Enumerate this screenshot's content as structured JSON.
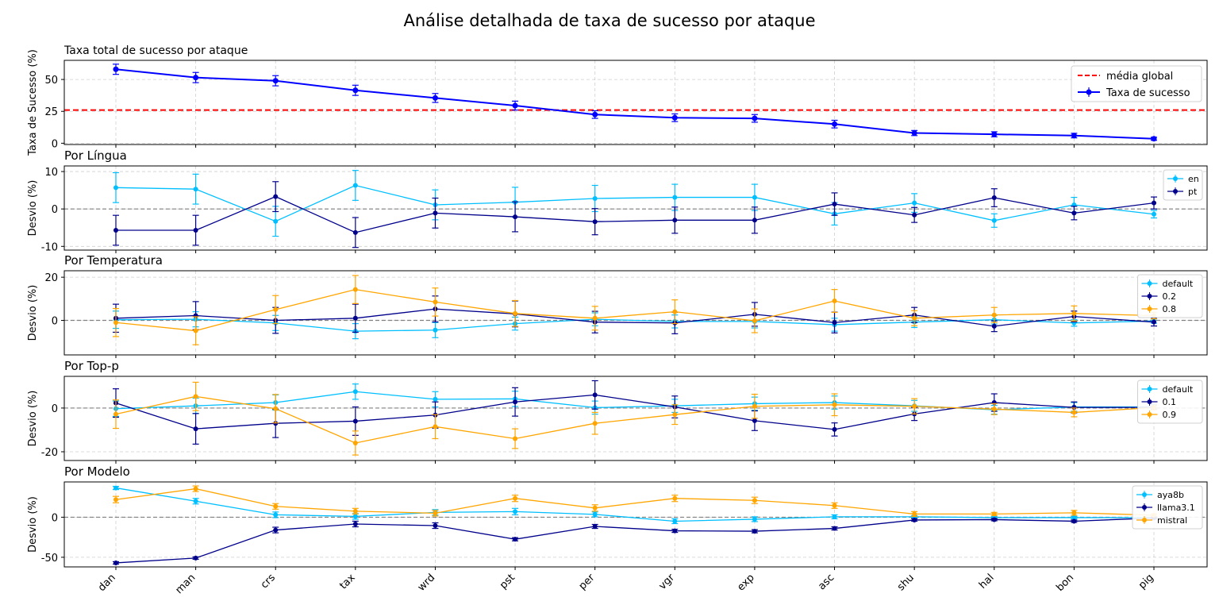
{
  "chart_data": {
    "type": "line",
    "title": "Análise detalhada de taxa de sucesso por ataque",
    "categories": [
      "dan",
      "man",
      "crs",
      "tax",
      "wrd",
      "pst",
      "per",
      "vgr",
      "exp",
      "asc",
      "shu",
      "hal",
      "bon",
      "pig"
    ],
    "panels": [
      {
        "title": "Taxa total de sucesso por ataque",
        "ylabel": "Taxa de Sucesso (%)",
        "ylim": [
          -1,
          65
        ],
        "yticks": [
          0,
          25,
          50
        ],
        "hline": {
          "value": 26,
          "label": "média global",
          "color": "#ff0000"
        },
        "legend_position": "upper right",
        "series": [
          {
            "name": "Taxa de sucesso",
            "color": "#0000ff",
            "values": [
              58,
              51.5,
              49,
              41.5,
              35.5,
              29.5,
              22.5,
              20,
              19.5,
              15,
              8,
              7,
              6,
              3.5
            ],
            "errors": [
              4,
              4,
              4,
              4,
              3.5,
              3.5,
              3,
              3,
              3,
              3,
              2,
              2,
              1.8,
              1.2
            ]
          }
        ]
      },
      {
        "title": "Por Língua",
        "ylabel": "Desvio (%)",
        "ylim": [
          -11,
          11.5
        ],
        "yticks": [
          -10,
          0,
          10
        ],
        "legend_position": "upper right",
        "series": [
          {
            "name": "en",
            "color": "#00bfff",
            "values": [
              5.7,
              5.3,
              -3.3,
              6.3,
              1.1,
              1.8,
              2.8,
              3.1,
              3.1,
              -1.3,
              1.6,
              -3.1,
              1.1,
              -1.4
            ],
            "errors": [
              4,
              4,
              4,
              4,
              4,
              4,
              3.5,
              3.5,
              3.5,
              3,
              2.5,
              1.8,
              2,
              1
            ]
          },
          {
            "name": "pt",
            "color": "#00008b",
            "values": [
              -5.7,
              -5.7,
              3.3,
              -6.3,
              -1.1,
              -2.1,
              -3.4,
              -3.0,
              -3.0,
              1.3,
              -1.6,
              3.0,
              -1.1,
              1.6
            ],
            "errors": [
              4,
              4,
              4,
              4,
              4,
              4,
              3.5,
              3.5,
              3.5,
              3,
              2,
              2.4,
              1.8,
              1.6
            ]
          }
        ]
      },
      {
        "title": "Por Temperatura",
        "ylabel": "Desvio (%)",
        "ylim": [
          -16,
          23
        ],
        "yticks": [
          0,
          20
        ],
        "legend_position": "upper right",
        "series": [
          {
            "name": "default",
            "color": "#00bfff",
            "values": [
              0.3,
              0.5,
              -1.2,
              -5.0,
              -4.5,
              -1.5,
              0.5,
              -0.5,
              -0.5,
              -2.0,
              -0.8,
              0.3,
              -1.2,
              -0.3
            ],
            "errors": [
              4,
              3.5,
              3.5,
              3.5,
              3.5,
              3,
              3,
              3,
              3,
              3,
              2.5,
              2,
              1.5,
              1
            ]
          },
          {
            "name": "0.2",
            "color": "#00008b",
            "values": [
              1.0,
              2.2,
              0.0,
              1.0,
              5.3,
              3.0,
              -0.8,
              -1.2,
              2.8,
              -1.0,
              2.5,
              -2.7,
              1.8,
              -0.8
            ],
            "errors": [
              6.5,
              6.5,
              6,
              6.5,
              6,
              6,
              5,
              5,
              5.5,
              4.8,
              3.5,
              2.5,
              2.5,
              1.8
            ]
          },
          {
            "name": "0.8",
            "color": "#ffa500",
            "values": [
              -1.0,
              -4.8,
              5.0,
              14.3,
              8.5,
              3.2,
              1.0,
              4.0,
              -0.2,
              9.0,
              1.0,
              2.5,
              3.2,
              2.2
            ],
            "errors": [
              6.5,
              6.5,
              6.5,
              6.5,
              6.5,
              6,
              5.5,
              5.5,
              5.5,
              5.3,
              3.5,
              3.5,
              3.5,
              1.5
            ]
          }
        ]
      },
      {
        "title": "Por Top-p",
        "ylabel": "Desvio (%)",
        "ylim": [
          -24,
          14.5
        ],
        "yticks": [
          -20,
          0
        ],
        "legend_position": "upper right",
        "series": [
          {
            "name": "default",
            "color": "#00bfff",
            "values": [
              -0.3,
              1.0,
              2.5,
              7.5,
              4.0,
              4.2,
              0.2,
              1.0,
              2.0,
              2.5,
              1.0,
              -0.8,
              0.5,
              0.5
            ],
            "errors": [
              3.5,
              3.5,
              3.5,
              3.5,
              3.5,
              3.5,
              3,
              3,
              3,
              3,
              2.5,
              2,
              2,
              1
            ]
          },
          {
            "name": "0.1",
            "color": "#00008b",
            "values": [
              2.3,
              -9.5,
              -7.0,
              -6.0,
              -3.2,
              2.8,
              6.0,
              0.5,
              -5.8,
              -9.8,
              -2.7,
              2.5,
              0.3,
              0.3
            ],
            "errors": [
              6.5,
              7,
              6.5,
              6.5,
              6,
              6.5,
              6.5,
              5,
              4.5,
              3,
              3,
              4,
              2.5,
              1
            ]
          },
          {
            "name": "0.9",
            "color": "#ffa500",
            "values": [
              -2.8,
              5.3,
              -0.3,
              -16.0,
              -8.5,
              -14.0,
              -7.0,
              -3.0,
              0.8,
              1.5,
              0.8,
              -0.5,
              -2.0,
              0.2
            ],
            "errors": [
              6.5,
              6.5,
              6.5,
              5.5,
              5.5,
              4.5,
              5,
              4.5,
              5.5,
              5,
              3.5,
              2.5,
              2,
              1
            ]
          }
        ]
      },
      {
        "title": "Por Modelo",
        "ylabel": "Desvio (%)",
        "ylim": [
          -62,
          44
        ],
        "yticks": [
          -50,
          0
        ],
        "legend_position": "upper right",
        "series": [
          {
            "name": "aya8b",
            "color": "#00bfff",
            "values": [
              36.5,
              20.0,
              3.0,
              1.0,
              6.0,
              7.0,
              3.5,
              -5.0,
              -2.5,
              0.5,
              0.5,
              -0.5,
              -0.5,
              -0.5
            ],
            "errors": [
              2,
              3.5,
              3.5,
              3.5,
              3.5,
              4,
              3,
              3,
              3,
              2.5,
              1.5,
              1.5,
              1.5,
              1
            ]
          },
          {
            "name": "llama3.1",
            "color": "#00008b",
            "values": [
              -57.0,
              -51.0,
              -16.0,
              -8.5,
              -10.5,
              -27.5,
              -11.5,
              -17.0,
              -17.5,
              -14.0,
              -3.5,
              -3.0,
              -5.0,
              -1.0
            ],
            "errors": [
              1.5,
              1.5,
              3.5,
              3.5,
              3.5,
              2,
              2.5,
              2,
              2,
              2,
              1.5,
              1.5,
              1.5,
              1
            ]
          },
          {
            "name": "mistral",
            "color": "#ffa500",
            "values": [
              22.0,
              35.5,
              13.5,
              7.5,
              5.0,
              23.5,
              11.5,
              23.5,
              21.0,
              14.5,
              4.0,
              4.0,
              5.5,
              2.5
            ],
            "errors": [
              4,
              3.5,
              3.5,
              3.5,
              3.5,
              4,
              4,
              4,
              4,
              3.5,
              3,
              2,
              3,
              1.5
            ]
          }
        ]
      }
    ]
  }
}
